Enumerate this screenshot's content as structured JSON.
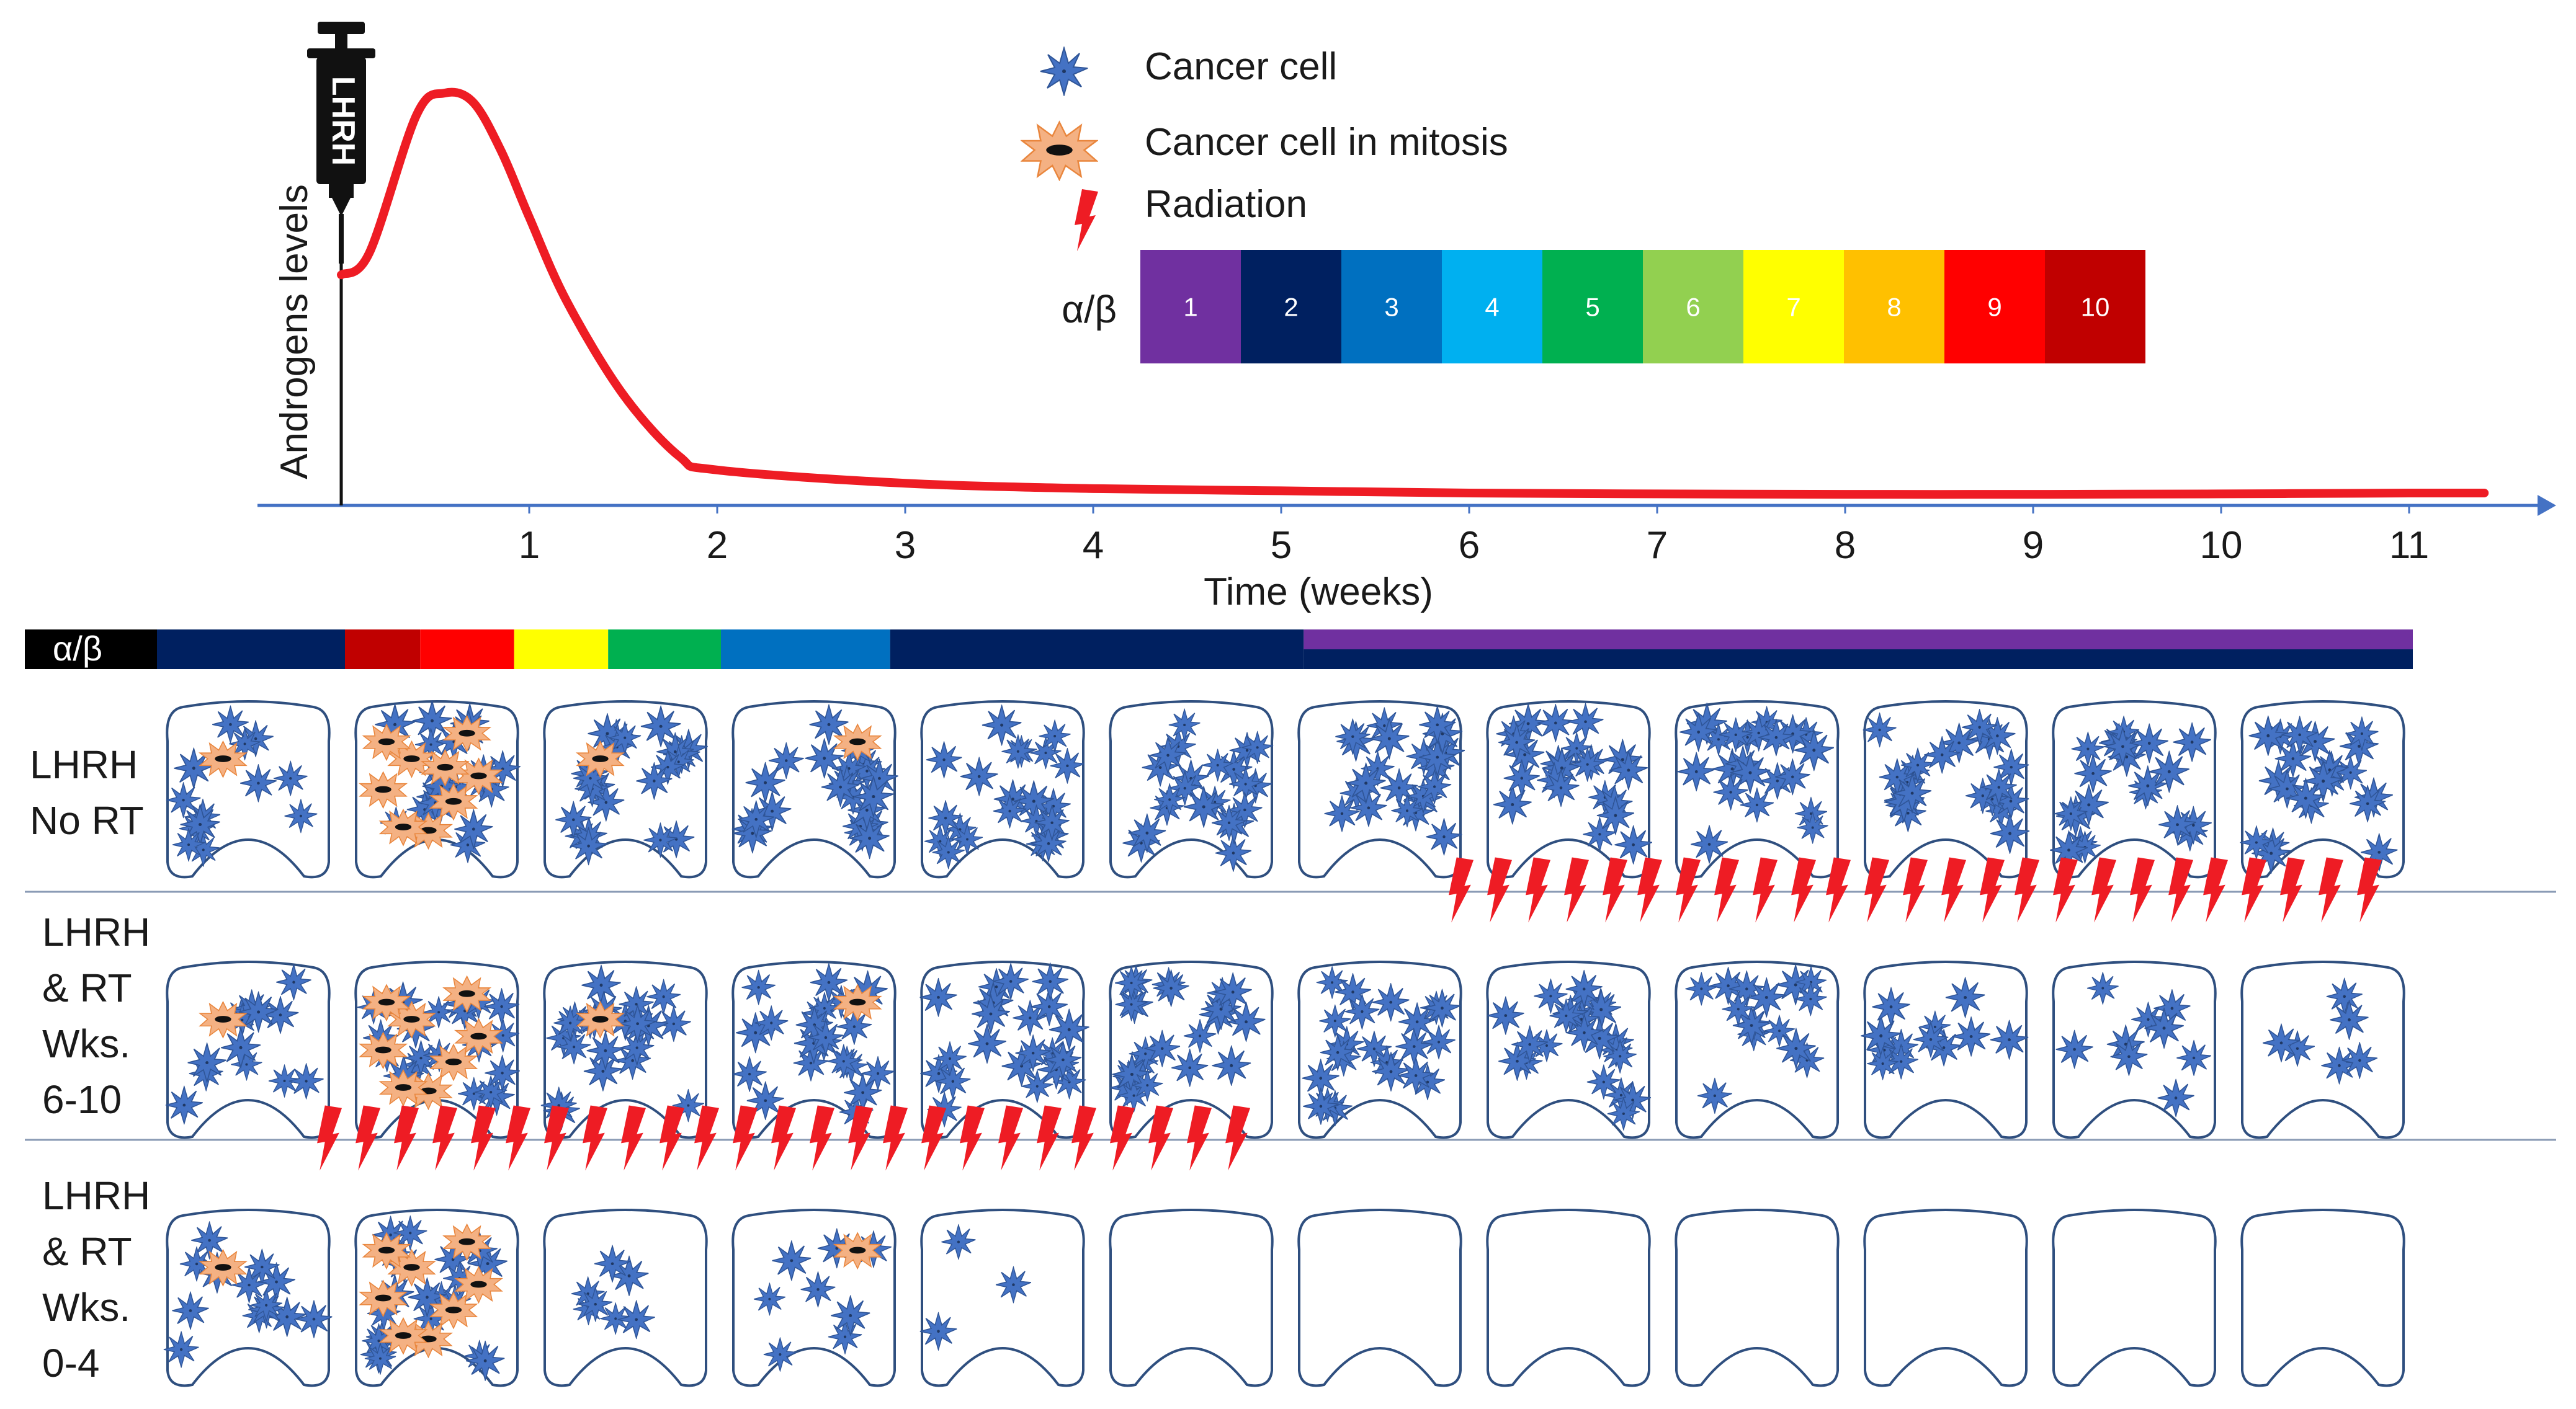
{
  "chart_data": {
    "type": "line",
    "series": [
      {
        "name": "Androgen levels",
        "color": "#ee1c24",
        "x": [
          0,
          0.15,
          0.4,
          0.55,
          0.7,
          0.85,
          1.0,
          1.2,
          1.5,
          1.8,
          2.0,
          3.0,
          4.0,
          5.0,
          6.0,
          7.0,
          8.0,
          9.0,
          10.0,
          11.0,
          11.4
        ],
        "y": [
          52,
          57,
          88,
          93,
          91,
          80,
          65,
          46,
          25,
          11,
          8,
          5,
          3.8,
          3.3,
          2.8,
          2.6,
          2.5,
          2.5,
          2.6,
          2.8,
          2.8
        ]
      }
    ],
    "xlabel": "Time (weeks)",
    "ylabel": "Androgens levels",
    "x_ticks": [
      "1",
      "2",
      "3",
      "4",
      "5",
      "6",
      "7",
      "8",
      "9",
      "10",
      "11"
    ],
    "xlim": [
      0,
      11.6
    ],
    "ylim": [
      0,
      100
    ],
    "grid": false
  },
  "syringe": {
    "label": "LHRH"
  },
  "legend": {
    "cancer_cell": "Cancer cell",
    "cancer_cell_mitosis": "Cancer cell in mitosis",
    "radiation": "Radiation"
  },
  "ab_scale": {
    "label": "α/β",
    "levels": [
      {
        "num": "1",
        "color": "#7030a0"
      },
      {
        "num": "2",
        "color": "#002060"
      },
      {
        "num": "3",
        "color": "#0070c0"
      },
      {
        "num": "4",
        "color": "#00b0f0"
      },
      {
        "num": "5",
        "color": "#00b050"
      },
      {
        "num": "6",
        "color": "#92d050"
      },
      {
        "num": "7",
        "color": "#ffff00"
      },
      {
        "num": "8",
        "color": "#ffc000"
      },
      {
        "num": "9",
        "color": "#ff0000"
      },
      {
        "num": "10",
        "color": "#c00000"
      }
    ]
  },
  "timeline_bar": {
    "label": "α/β",
    "segments": [
      {
        "level": 2,
        "from": 0.0,
        "to": 1.0
      },
      {
        "level": 10,
        "from": 1.0,
        "to": 1.4
      },
      {
        "level": 9,
        "from": 1.4,
        "to": 1.9
      },
      {
        "level": 7,
        "from": 1.9,
        "to": 2.4
      },
      {
        "level": 5,
        "from": 2.4,
        "to": 3.0
      },
      {
        "level": 3,
        "from": 3.0,
        "to": 3.9
      },
      {
        "level": 2,
        "from": 3.9,
        "to": 6.1
      },
      {
        "level": 1,
        "from": 6.1,
        "to": 12.0
      }
    ]
  },
  "rows": [
    {
      "label_lines": [
        "LHRH",
        "No RT"
      ],
      "cell_counts": [
        13,
        20,
        22,
        22,
        22,
        22,
        22,
        22,
        22,
        22,
        22,
        22
      ],
      "mitosis_counts": [
        1,
        9,
        1,
        1,
        0,
        0,
        0,
        0,
        0,
        0,
        0,
        0
      ],
      "radiation_weeks": []
    },
    {
      "label_lines": [
        "LHRH",
        "& RT",
        "Wks.",
        "6-10"
      ],
      "cell_counts": [
        13,
        20,
        22,
        22,
        22,
        22,
        22,
        22,
        15,
        12,
        9,
        6
      ],
      "mitosis_counts": [
        1,
        8,
        1,
        1,
        0,
        0,
        0,
        0,
        0,
        0,
        0,
        0
      ],
      "radiation_weeks": [
        7,
        8,
        9,
        10,
        11
      ]
    },
    {
      "label_lines": [
        "LHRH",
        "& RT",
        "Wks.",
        "0-4"
      ],
      "cell_counts": [
        13,
        20,
        7,
        8,
        3,
        0,
        0,
        0,
        0,
        0,
        0,
        0
      ],
      "mitosis_counts": [
        1,
        8,
        0,
        1,
        0,
        0,
        0,
        0,
        0,
        0,
        0,
        0
      ],
      "radiation_weeks": [
        1,
        2,
        3,
        4,
        5
      ]
    }
  ]
}
